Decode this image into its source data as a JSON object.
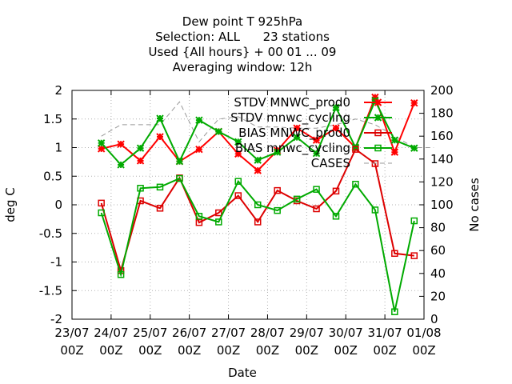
{
  "chart_data": {
    "type": "line",
    "title_lines": [
      "Dew point T 925hPa",
      "Selection: ALL      23 stations",
      "Used {All hours} + 00 01 ... 09",
      "Averaging window: 12h"
    ],
    "xlabel": "Date",
    "ylabel": "deg C",
    "y2label": "No cases",
    "ylim": [
      -2,
      2
    ],
    "y2lim": [
      0,
      200
    ],
    "yticks": [
      "2",
      "1.5",
      "1",
      "0.5",
      "0",
      "-0.5",
      "-1",
      "-1.5",
      "-2"
    ],
    "y2ticks": [
      "200",
      "180",
      "160",
      "140",
      "120",
      "100",
      "80",
      "60",
      "40",
      "20",
      "0"
    ],
    "xticks": [
      {
        "date": "23/07",
        "hour": "00Z"
      },
      {
        "date": "24/07",
        "hour": "00Z"
      },
      {
        "date": "25/07",
        "hour": "00Z"
      },
      {
        "date": "26/07",
        "hour": "00Z"
      },
      {
        "date": "27/07",
        "hour": "00Z"
      },
      {
        "date": "28/07",
        "hour": "00Z"
      },
      {
        "date": "29/07",
        "hour": "00Z"
      },
      {
        "date": "30/07",
        "hour": "00Z"
      },
      {
        "date": "31/07",
        "hour": "00Z"
      },
      {
        "date": "01/08",
        "hour": "00Z"
      }
    ],
    "grid": true,
    "legend_position": "top-right",
    "x": [
      0.75,
      1.25,
      1.75,
      2.25,
      2.75,
      3.25,
      3.75,
      4.25,
      4.75,
      5.25,
      5.75,
      6.25,
      6.75,
      7.25,
      7.75,
      8.25,
      8.75,
      9.25
    ],
    "series": [
      {
        "name": "STDV MNWC_prod0",
        "color": "#ff0000",
        "marker": "star",
        "dash": false,
        "axis": "y",
        "values": [
          0.98,
          1.06,
          0.77,
          1.19,
          0.76,
          0.97,
          1.28,
          0.89,
          0.6,
          0.95,
          1.34,
          1.13,
          1.34,
          1.0,
          1.88,
          0.92,
          1.78,
          null
        ]
      },
      {
        "name": "STDV mnwc_cycling",
        "color": "#00aa00",
        "marker": "star",
        "dash": false,
        "axis": "y",
        "values": [
          1.08,
          0.7,
          0.99,
          1.51,
          0.76,
          1.48,
          1.28,
          1.1,
          0.78,
          0.92,
          1.18,
          0.9,
          1.7,
          1.0,
          1.82,
          1.13,
          0.99,
          null
        ]
      },
      {
        "name": "BIAS MNWC_prod0",
        "color": "#dd0000",
        "marker": "square",
        "dash": false,
        "axis": "y",
        "values": [
          0.03,
          -1.15,
          0.07,
          -0.06,
          0.47,
          -0.31,
          -0.14,
          0.16,
          -0.3,
          0.25,
          0.07,
          -0.07,
          0.24,
          0.97,
          0.72,
          -0.85,
          -0.89,
          null
        ]
      },
      {
        "name": "BIAS mnwc_cycling",
        "color": "#00aa00",
        "marker": "square",
        "dash": false,
        "axis": "y",
        "values": [
          -0.14,
          -1.22,
          0.29,
          0.31,
          0.46,
          -0.2,
          -0.3,
          0.41,
          0.0,
          -0.1,
          0.1,
          0.27,
          -0.2,
          0.36,
          -0.09,
          -1.87,
          -0.28,
          null
        ]
      },
      {
        "name": "CASES",
        "color": "#999999",
        "marker": "none",
        "dash": true,
        "axis": "y2",
        "values": [
          160,
          170,
          170,
          170,
          190,
          155,
          175,
          177,
          168,
          168,
          167,
          167,
          170,
          175,
          170,
          160,
          150,
          150
        ]
      }
    ]
  }
}
